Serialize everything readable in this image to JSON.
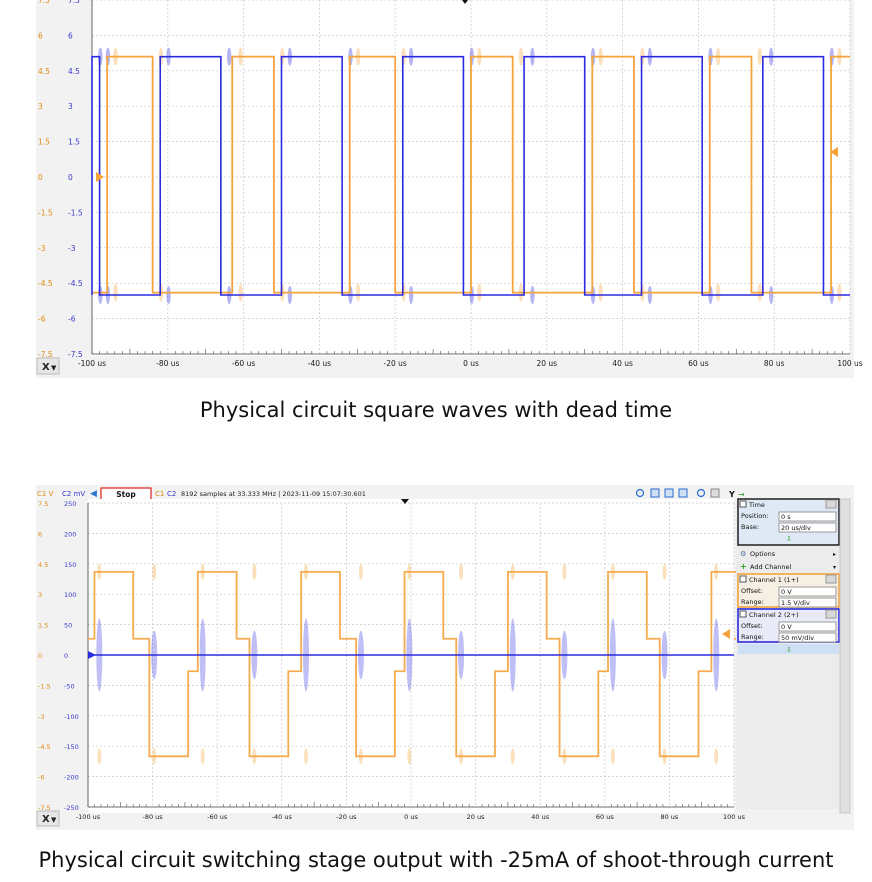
{
  "captions": {
    "top": "Physical circuit square waves with dead time",
    "bottom": "Physical circuit switching stage output with -25mA of shoot-through current"
  },
  "colors": {
    "channel1": "#f5a33b",
    "channel2": "#2a2ae0",
    "grid": "#c8c8c8",
    "axis_text": "#1a1a1a",
    "ch1_tick_text": "#e08a10",
    "ch2_tick_text": "#3a3ad0"
  },
  "toolbar": {
    "ch1_unit": "C1 V",
    "ch2_unit": "C2 mV",
    "stop_label": "Stop",
    "ch1_tag": "C1",
    "ch2_tag": "C2",
    "status": "8192 samples at 33.333 MHz | 2023-11-09 15:07:30.601",
    "y_label": "Y"
  },
  "x_axis_button": "X",
  "side_panel": {
    "time_title": "Time",
    "position_label": "Position:",
    "position_value": "0 s",
    "base_label": "Base:",
    "base_value": "20 us/div",
    "options_label": "Options",
    "add_channel_label": "Add Channel",
    "channel1_title": "Channel 1 (1+)",
    "ch1_offset_label": "Offset:",
    "ch1_offset_value": "0 V",
    "ch1_range_label": "Range:",
    "ch1_range_value": "1.5 V/div",
    "channel2_title": "Channel 2 (2+)",
    "ch2_offset_label": "Offset:",
    "ch2_offset_value": "0 V",
    "ch2_range_label": "Range:",
    "ch2_range_value": "50 mV/div"
  },
  "chart_data": [
    {
      "type": "line",
      "x_ticks": [
        "-100 us",
        "-80 us",
        "-60 us",
        "-40 us",
        "-20 us",
        "0 us",
        "20 us",
        "40 us",
        "60 us",
        "80 us",
        "100 us"
      ],
      "xlim": [
        -100,
        100
      ],
      "y_left_ticks": [
        "7.5",
        "6",
        "4.5",
        "3",
        "1.5",
        "0",
        "-1.5",
        "-3",
        "-4.5",
        "-6",
        "-7.5"
      ],
      "y_right_ticks": [
        "7.5",
        "6",
        "4.5",
        "3",
        "1.5",
        "0",
        "-1.5",
        "-3",
        "-4.5",
        "-6",
        "-7.5"
      ],
      "ylim": [
        -7.5,
        7.5
      ],
      "grid": true,
      "series": [
        {
          "channel": "C1",
          "high": 5.1,
          "low": -4.9,
          "rising_edges_us": [
            -96,
            -63,
            -32,
            0,
            32,
            63,
            95
          ],
          "falling_edges_us": [
            -84,
            -52,
            -20,
            11,
            43,
            74
          ]
        },
        {
          "channel": "C2",
          "high": 5.1,
          "low": -5.0,
          "rising_edges_us": [
            -100,
            -82,
            -50,
            -18,
            14,
            45,
            77
          ],
          "falling_edges_us": [
            -98,
            -66,
            -34,
            -2,
            30,
            61,
            93
          ]
        }
      ]
    },
    {
      "type": "line",
      "x_ticks": [
        "-100 us",
        "-80 us",
        "-60 us",
        "-40 us",
        "-20 us",
        "0 us",
        "20 us",
        "40 us",
        "60 us",
        "80 us",
        "100 us"
      ],
      "xlim": [
        -100,
        100
      ],
      "y_left_ticks": [
        "7.5",
        "6",
        "4.5",
        "3",
        "1.5",
        "0",
        "-1.5",
        "-3",
        "-4.5",
        "-6",
        "-7.5"
      ],
      "y_right_ticks": [
        "250",
        "200",
        "150",
        "100",
        "50",
        "0",
        "-50",
        "-100",
        "-150",
        "-200",
        "-250"
      ],
      "ylim": [
        -7.5,
        7.5
      ],
      "grid": true,
      "series": [
        {
          "channel": "C1",
          "high": 4.1,
          "mid_high": 0.8,
          "mid_low": -0.8,
          "low": -5.0,
          "rising_edges_us": [
            -98,
            -66,
            -34,
            -2,
            30,
            61,
            93
          ],
          "falling_edges_us": [
            -81,
            -50,
            -17,
            14,
            46,
            77
          ],
          "dead_time_us": 2.5
        },
        {
          "channel": "C2",
          "baseline_mV": 0,
          "spike_times_us": [
            -98,
            -81,
            -66,
            -50,
            -34,
            -17,
            -2,
            14,
            30,
            46,
            61,
            77,
            93
          ],
          "spike_amplitude_mV": 50
        }
      ]
    }
  ]
}
